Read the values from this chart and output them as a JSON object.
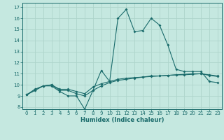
{
  "title": "",
  "xlabel": "Humidex (Indice chaleur)",
  "bg_color": "#c5e8e0",
  "grid_color": "#aed4cb",
  "line_color": "#1a6b6b",
  "xlim": [
    -0.5,
    23.5
  ],
  "ylim": [
    7.8,
    17.4
  ],
  "xticks": [
    0,
    1,
    2,
    3,
    4,
    5,
    6,
    7,
    8,
    9,
    10,
    11,
    12,
    13,
    14,
    15,
    16,
    17,
    18,
    19,
    20,
    21,
    22,
    23
  ],
  "yticks": [
    8,
    9,
    10,
    11,
    12,
    13,
    14,
    15,
    16,
    17
  ],
  "line1_x": [
    0,
    1,
    2,
    3,
    4,
    5,
    6,
    7,
    8,
    9,
    10,
    11,
    12,
    13,
    14,
    15,
    16,
    17,
    18,
    19,
    20,
    21,
    22,
    23
  ],
  "line1_y": [
    9.1,
    9.6,
    9.9,
    9.9,
    9.4,
    9.0,
    9.0,
    7.8,
    9.5,
    11.3,
    10.3,
    16.0,
    16.8,
    14.8,
    14.9,
    16.0,
    15.4,
    13.6,
    11.4,
    11.2,
    11.2,
    11.2,
    10.3,
    10.2
  ],
  "line2_x": [
    0,
    1,
    2,
    3,
    4,
    5,
    6,
    7,
    8,
    9,
    10,
    11,
    12,
    13,
    14,
    15,
    16,
    17,
    18,
    19,
    20,
    21,
    22,
    23
  ],
  "line2_y": [
    9.1,
    9.5,
    9.9,
    10.0,
    9.5,
    9.5,
    9.2,
    9.0,
    9.5,
    9.9,
    10.2,
    10.4,
    10.5,
    10.6,
    10.7,
    10.8,
    10.8,
    10.85,
    10.9,
    10.95,
    11.0,
    11.0,
    10.9,
    10.8
  ],
  "line3_x": [
    0,
    1,
    2,
    3,
    4,
    5,
    6,
    7,
    8,
    9,
    10,
    11,
    12,
    13,
    14,
    15,
    16,
    17,
    18,
    19,
    20,
    21,
    22,
    23
  ],
  "line3_y": [
    9.1,
    9.5,
    9.9,
    10.0,
    9.6,
    9.6,
    9.4,
    9.2,
    9.8,
    10.1,
    10.3,
    10.5,
    10.6,
    10.65,
    10.7,
    10.75,
    10.8,
    10.85,
    10.9,
    10.9,
    10.95,
    11.0,
    10.85,
    10.75
  ],
  "marker_size": 2.0,
  "line_width": 0.8,
  "tick_fontsize": 5.0,
  "xlabel_fontsize": 6.0
}
